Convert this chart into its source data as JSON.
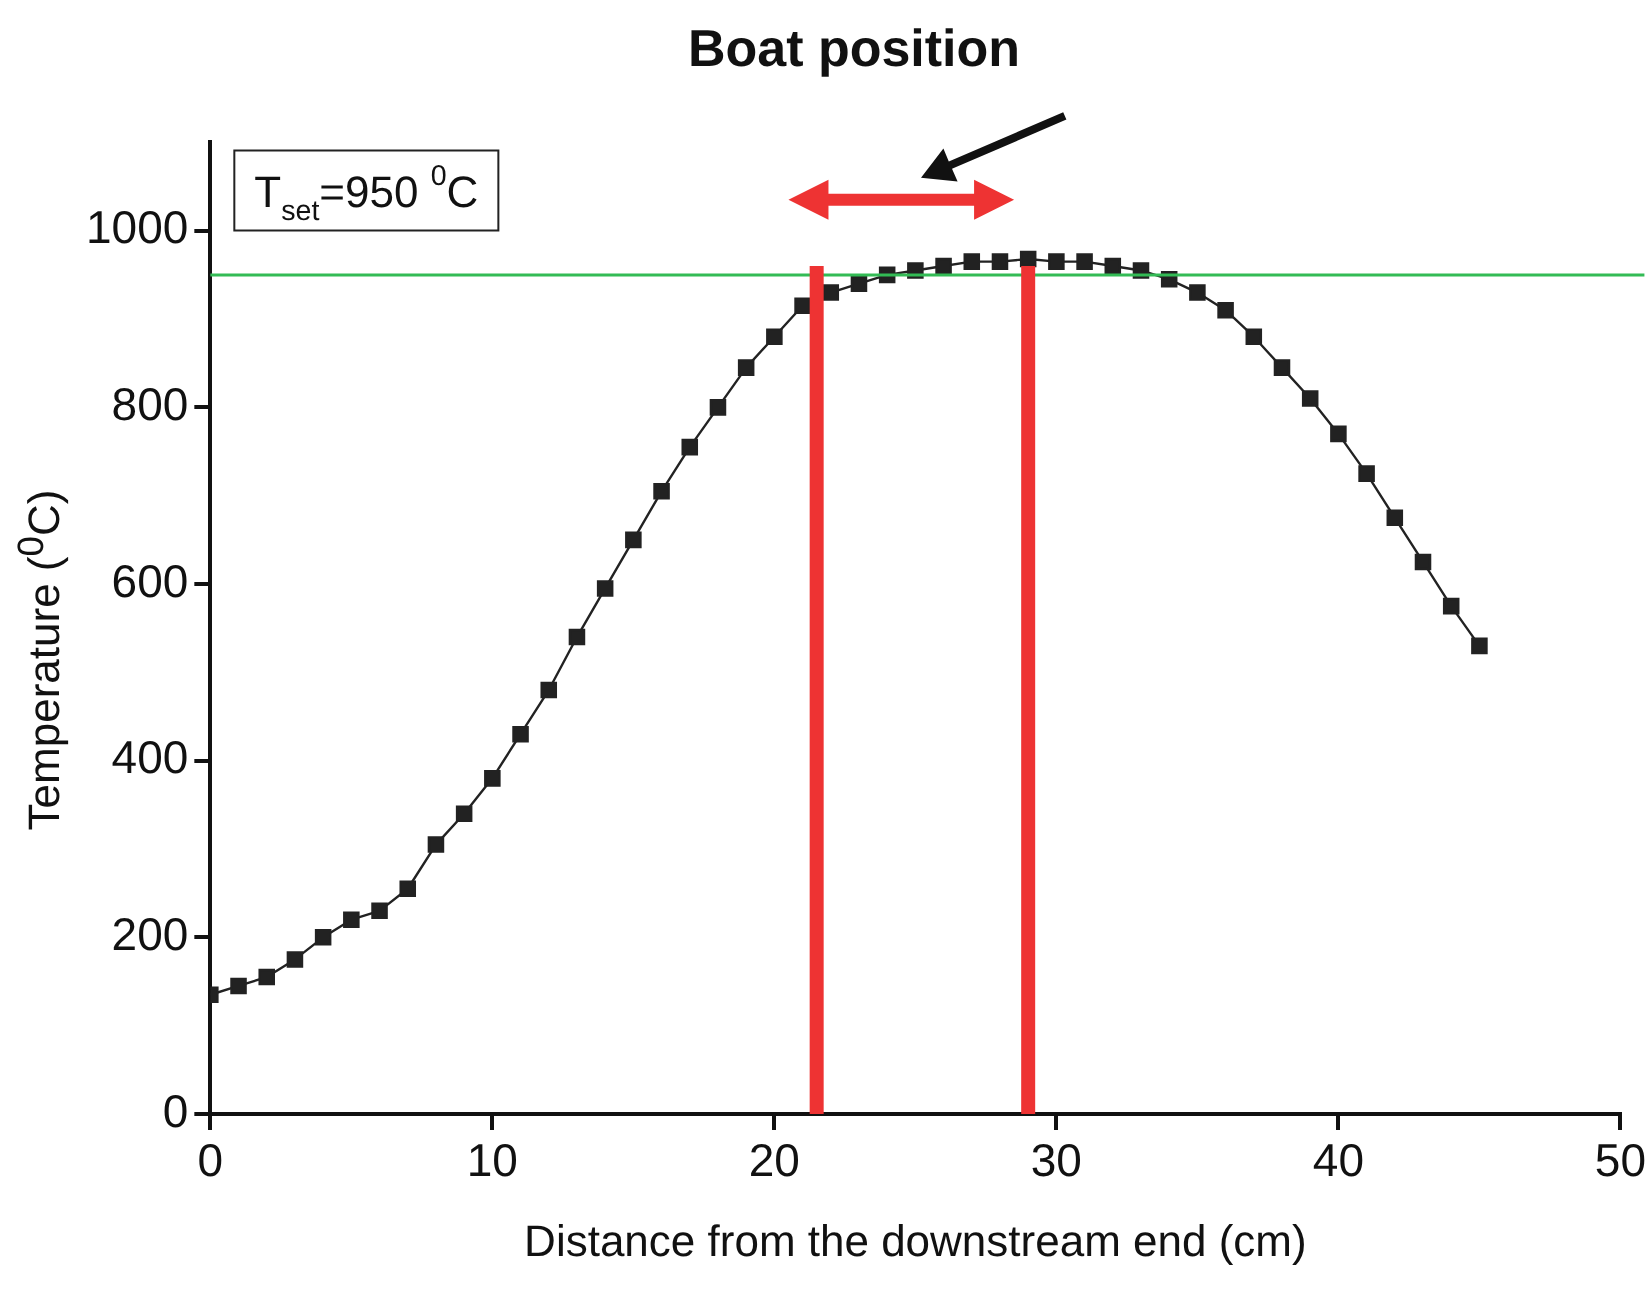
{
  "chart_data": {
    "type": "line",
    "title": "Boat position",
    "xlabel": "Distance from the downstream end (cm)",
    "ylabel": "Temperature ($^{0}$C)",
    "annotations": [
      "T$_{set}$=950 $^{0}$C"
    ],
    "x": [
      0,
      1,
      2,
      3,
      4,
      5,
      6,
      7,
      8,
      9,
      10,
      11,
      12,
      13,
      14,
      15,
      16,
      17,
      18,
      19,
      20,
      21,
      22,
      23,
      24,
      25,
      26,
      27,
      28,
      29,
      30,
      31,
      32,
      33,
      34,
      35,
      36,
      37,
      38,
      39,
      40,
      41,
      42,
      43,
      44,
      45
    ],
    "series": [
      {
        "color": "#222222",
        "values": [
          135,
          145,
          155,
          175,
          200,
          220,
          230,
          255,
          305,
          340,
          380,
          430,
          480,
          540,
          595,
          650,
          705,
          755,
          800,
          845,
          880,
          915,
          930,
          940,
          950,
          955,
          960,
          965,
          965,
          968,
          965,
          965,
          960,
          955,
          945,
          930,
          910,
          880,
          845,
          810,
          770,
          725,
          675,
          625,
          575,
          530
        ]
      }
    ],
    "xlim": [
      0,
      50
    ],
    "xticks": [
      0,
      10,
      20,
      30,
      40,
      50
    ],
    "ylim": [
      0,
      1100
    ],
    "yticks": [
      0,
      200,
      400,
      600,
      800,
      1000
    ],
    "ref_lines": [
      {
        "axis": "y",
        "value": 950,
        "color": "#33bb55"
      },
      {
        "axis": "x",
        "value": 21.5,
        "color": "#ee3333"
      },
      {
        "axis": "x",
        "value": 29,
        "color": "#ee3333"
      }
    ],
    "marker": "square",
    "line_style": "solid",
    "grid": false,
    "legend": false
  }
}
